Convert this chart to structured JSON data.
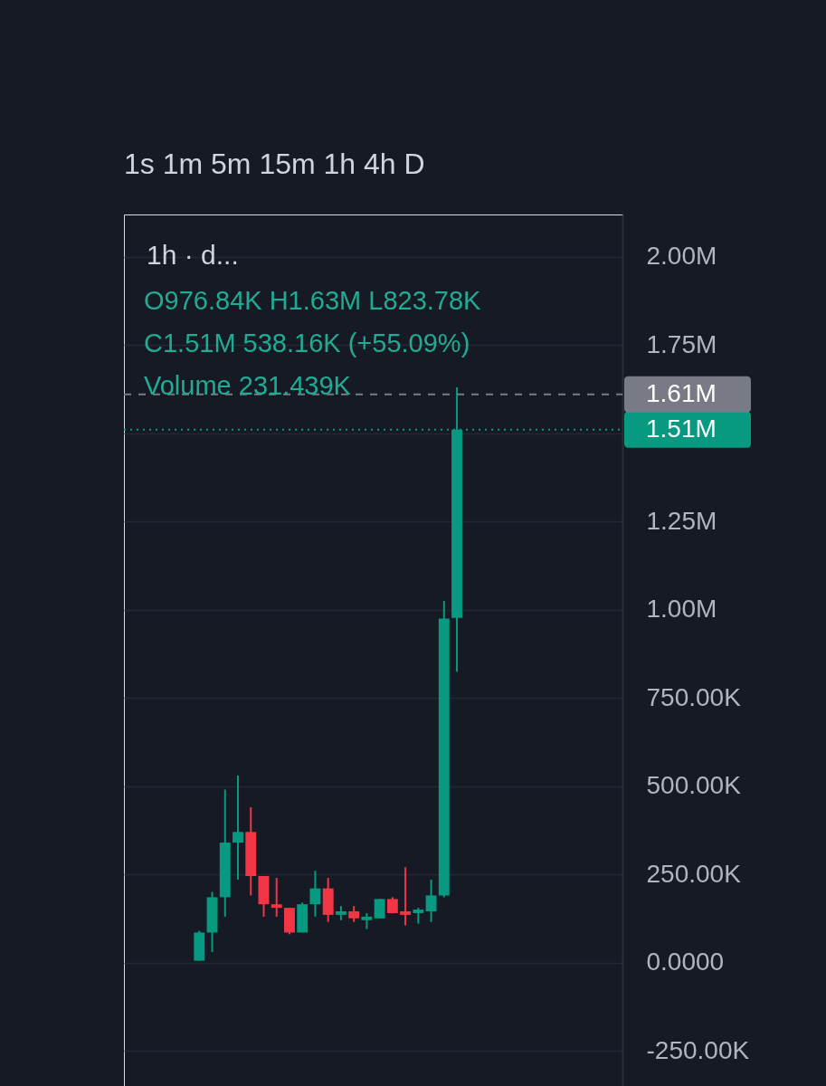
{
  "chart_data": {
    "type": "candlestick",
    "title": "1h · d...",
    "categories": [
      null,
      null,
      null,
      null,
      null,
      null,
      null,
      null,
      null,
      null,
      null,
      null,
      null,
      null,
      null,
      null,
      null,
      null,
      null,
      null,
      null,
      null,
      null,
      null,
      null,
      null,
      null,
      null,
      null,
      null,
      null,
      null,
      null,
      null,
      null,
      null,
      null,
      null
    ],
    "ohlc": [
      null,
      null,
      null,
      null,
      null,
      [
        5000,
        90000,
        5000,
        85000
      ],
      [
        85000,
        200000,
        30000,
        185000
      ],
      [
        185000,
        490000,
        130000,
        340000
      ],
      [
        340000,
        530000,
        235000,
        370000
      ],
      [
        370000,
        440000,
        190000,
        245000
      ],
      [
        245000,
        245000,
        130000,
        165000
      ],
      [
        165000,
        240000,
        130000,
        155000
      ],
      [
        155000,
        155000,
        80000,
        85000
      ],
      [
        85000,
        170000,
        85000,
        165000
      ],
      [
        165000,
        260000,
        130000,
        210000
      ],
      [
        210000,
        240000,
        115000,
        135000
      ],
      [
        135000,
        160000,
        120000,
        145000
      ],
      [
        145000,
        160000,
        115000,
        125000
      ],
      [
        120000,
        140000,
        95000,
        130000
      ],
      [
        125000,
        180000,
        125000,
        180000
      ],
      [
        180000,
        185000,
        140000,
        140000
      ],
      [
        145000,
        270000,
        105000,
        135000
      ],
      [
        140000,
        155000,
        110000,
        150000
      ],
      [
        145000,
        235000,
        115000,
        190000
      ],
      [
        190000,
        1025000,
        185000,
        975000
      ],
      [
        976840,
        1630000,
        823780,
        1510000
      ],
      null,
      null,
      null,
      null,
      null,
      null,
      null,
      null,
      null,
      null,
      null,
      null
    ],
    "colors": [
      null,
      null,
      null,
      null,
      null,
      "#089981",
      "#089981",
      "#089981",
      "#089981",
      "#f23645",
      "#f23645",
      "#f23645",
      "#f23645",
      "#089981",
      "#089981",
      "#f23645",
      "#089981",
      "#f23645",
      "#089981",
      "#089981",
      "#f23645",
      "#f23645",
      "#089981",
      "#089981",
      "#089981",
      "#089981",
      null,
      null,
      null,
      null,
      null,
      null,
      null,
      null,
      null,
      null,
      null,
      null
    ],
    "ylim": [
      -350000,
      2120000
    ],
    "yticks": [
      {
        "value": 2000000,
        "label": "2.00M"
      },
      {
        "value": 1750000,
        "label": "1.75M"
      },
      {
        "value": 1500000,
        "label": null
      },
      {
        "value": 1250000,
        "label": "1.25M"
      },
      {
        "value": 1000000,
        "label": "1.00M"
      },
      {
        "value": 750000,
        "label": "750.00K"
      },
      {
        "value": 500000,
        "label": "500.00K"
      },
      {
        "value": 250000,
        "label": "250.00K"
      },
      {
        "value": 0,
        "label": "0.0000"
      },
      {
        "value": -250000,
        "label": "-250.00K"
      }
    ],
    "grid": "y",
    "tick_labels": "y",
    "ref_lines": [
      {
        "axis": "y",
        "value": 1510000,
        "label": "1.51M",
        "color": "#089981",
        "line_style": "dotted"
      },
      {
        "axis": "y",
        "value": 1610000,
        "label": "1.61M",
        "color": "#787b86",
        "line_style": "dashed"
      }
    ],
    "annotations": [
      "1s 1m 5m 15m 1h 4h D",
      "O976.84K H1.63M L823.78K",
      "C1.51M 538.16K (+55.09%)",
      "Volume 231.439K"
    ]
  }
}
